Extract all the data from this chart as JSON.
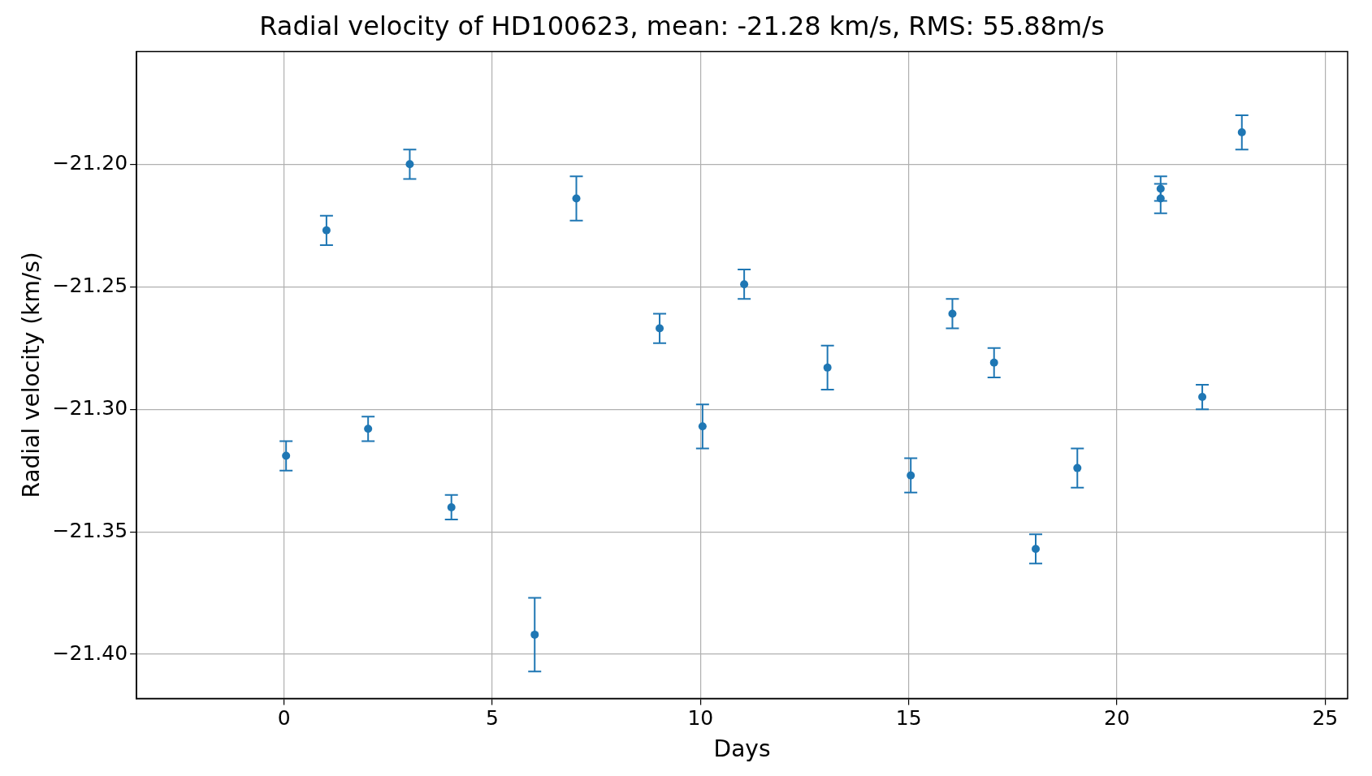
{
  "chart_data": {
    "type": "scatter",
    "title": "Radial velocity of HD100623, mean: -21.28 km/s, RMS: 55.88m/s",
    "xlabel": "Days",
    "ylabel": "Radial velocity (km/s)",
    "x": [
      0.05,
      1.02,
      2.02,
      3.02,
      4.02,
      6.02,
      7.02,
      9.02,
      10.05,
      11.05,
      13.05,
      15.05,
      16.05,
      17.05,
      18.05,
      19.05,
      21.05,
      21.05,
      22.05,
      23.0
    ],
    "series": [
      {
        "color": "#1f77b4",
        "values": [
          -21.319,
          -21.227,
          -21.308,
          -21.2,
          -21.34,
          -21.392,
          -21.214,
          -21.267,
          -21.307,
          -21.249,
          -21.283,
          -21.327,
          -21.261,
          -21.281,
          -21.357,
          -21.324,
          -21.21,
          -21.214,
          -21.295,
          -21.187
        ],
        "errors": [
          0.006,
          0.006,
          0.005,
          0.006,
          0.005,
          0.015,
          0.009,
          0.006,
          0.009,
          0.006,
          0.009,
          0.007,
          0.006,
          0.006,
          0.006,
          0.008,
          0.005,
          0.006,
          0.005,
          0.007
        ]
      }
    ],
    "xlim": [
      -3.54,
      25.54
    ],
    "ylim": [
      -21.418,
      -21.154
    ],
    "xticks": [
      0,
      5,
      10,
      15,
      20,
      25
    ],
    "yticks": [
      {
        "value": -21.4,
        "label": "−21.40"
      },
      {
        "value": -21.35,
        "label": "−21.35"
      },
      {
        "value": -21.3,
        "label": "−21.30"
      },
      {
        "value": -21.25,
        "label": "−21.25"
      },
      {
        "value": -21.2,
        "label": "−21.20"
      }
    ],
    "grid": true,
    "marker": "circle"
  }
}
